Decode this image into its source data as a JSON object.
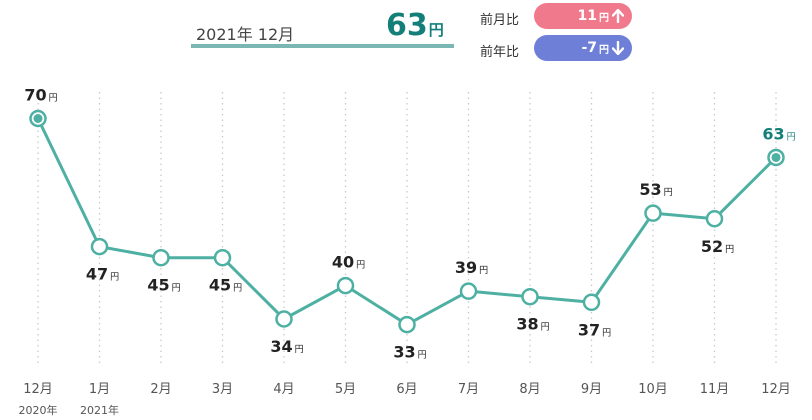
{
  "header": {
    "period": "2021年 12月",
    "value": "63",
    "unit": "円",
    "month_label": "前月比",
    "month_value": "11",
    "year_label": "前年比",
    "year_value": "-7",
    "month_color": "#f07a8c",
    "year_color": "#6e7fd8",
    "month_arrow": "arrow-up-icon",
    "year_arrow": "arrow-down-icon"
  },
  "chart_data": {
    "type": "line",
    "unit": "円",
    "categories": [
      "12月",
      "1月",
      "2月",
      "3月",
      "4月",
      "5月",
      "6月",
      "7月",
      "8月",
      "9月",
      "10月",
      "11月",
      "12月"
    ],
    "year_labels": [
      "2020年",
      "2021年",
      "",
      "",
      "",
      "",
      "",
      "",
      "",
      "",
      "",
      "",
      ""
    ],
    "values": [
      70,
      47,
      45,
      45,
      34,
      40,
      33,
      39,
      38,
      37,
      53,
      52,
      63
    ],
    "label_positions": [
      "above",
      "below",
      "below",
      "below",
      "below",
      "above",
      "below",
      "above",
      "below",
      "below",
      "above",
      "below",
      "above"
    ],
    "highlighted_points": [
      0,
      12
    ],
    "ylim": [
      20,
      80
    ],
    "grid": "vertical-dotted",
    "line_color": "#4db0a2",
    "highlight_label_color": "#137f78"
  }
}
